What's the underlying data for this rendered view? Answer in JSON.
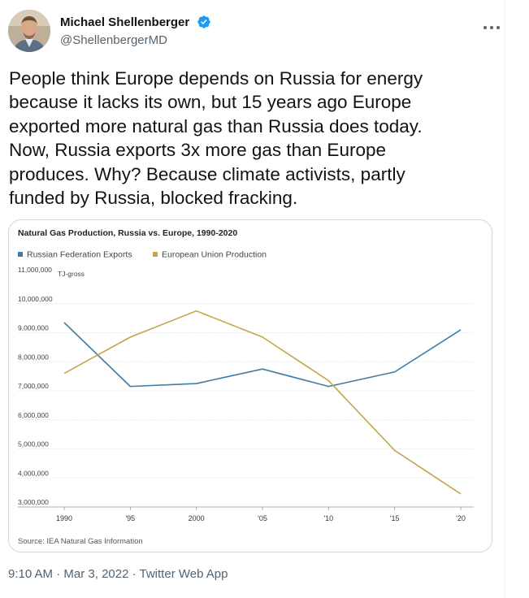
{
  "tweet": {
    "author_name": "Michael Shellenberger",
    "author_handle": "@ShellenbergerMD",
    "text": "People think Europe depends on Russia for energy\nbecause it lacks its own, but 15 years ago Europe\nexported more natural gas than Russia does today.\nNow, Russia exports 3x more gas than Europe\nproduces. Why? Because climate activists, partly\nfunded by Russia, blocked fracking.",
    "time": "9:10 AM",
    "date": "Mar 3, 2022",
    "separator": "·",
    "client": "Twitter Web App"
  },
  "icons": {
    "avatar": "avatar",
    "verified": "verified-badge-icon",
    "more": "more-dots-icon"
  },
  "colors": {
    "verified": "#1d9bf0",
    "text": "#0f1419",
    "muted": "#536471",
    "border": "#cfd9de",
    "russia": "#3f7ca3",
    "europe": "#c5a54a"
  },
  "chart_data": {
    "type": "line",
    "title": "Natural Gas Production, Russia vs. Europe, 1990-2020",
    "source": "Source: IEA Natural Gas Information",
    "unit_label": "TJ-gross",
    "x": [
      "1990",
      "'95",
      "2000",
      "'05",
      "'10",
      "'15",
      "'20"
    ],
    "y_ticks": [
      "11,000,000",
      "10,000,000",
      "9,000,000",
      "8,000,000",
      "7,000,000",
      "6,000,000",
      "5,000,000",
      "4,000,000",
      "3,000,000"
    ],
    "ylim": [
      3000000,
      11000000
    ],
    "grid": true,
    "legend_position": "top-left",
    "series": [
      {
        "name": "Russian Federation Exports",
        "color": "#3f7ca3",
        "values": [
          9350000,
          7150000,
          7250000,
          7750000,
          7150000,
          7650000,
          9100000
        ]
      },
      {
        "name": "European Union Production",
        "color": "#c5a54a",
        "values": [
          7600000,
          8850000,
          9750000,
          8850000,
          7350000,
          4950000,
          3450000
        ]
      }
    ]
  }
}
